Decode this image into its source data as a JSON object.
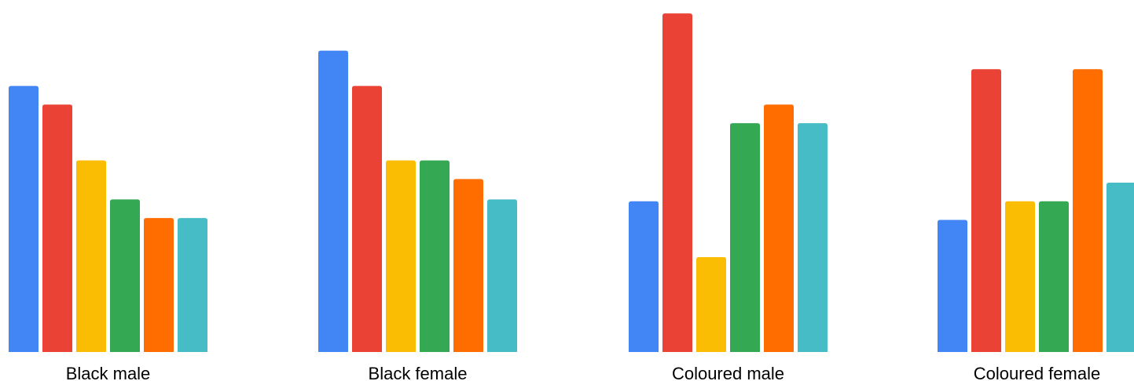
{
  "chart_data": {
    "type": "bar",
    "categories": [
      "Black male",
      "Black female",
      "Coloured male",
      "Coloured female"
    ],
    "series": [
      {
        "color": "#4285F4",
        "values": [
          14.3,
          16.2,
          8.1,
          7.1
        ]
      },
      {
        "color": "#EA4335",
        "values": [
          13.3,
          14.3,
          18.2,
          15.2
        ]
      },
      {
        "color": "#FBBC04",
        "values": [
          10.3,
          10.3,
          5.1,
          8.1
        ]
      },
      {
        "color": "#34A853",
        "values": [
          8.2,
          10.3,
          12.3,
          8.1
        ]
      },
      {
        "color": "#FF6D01",
        "values": [
          7.2,
          9.3,
          13.3,
          15.2
        ]
      },
      {
        "color": "#46BDC6",
        "values": [
          7.2,
          8.2,
          12.3,
          9.1
        ]
      }
    ],
    "title": "",
    "xlabel": "",
    "ylabel": "",
    "ylim": [
      0,
      18.5
    ],
    "grid": false,
    "legend": "none"
  }
}
